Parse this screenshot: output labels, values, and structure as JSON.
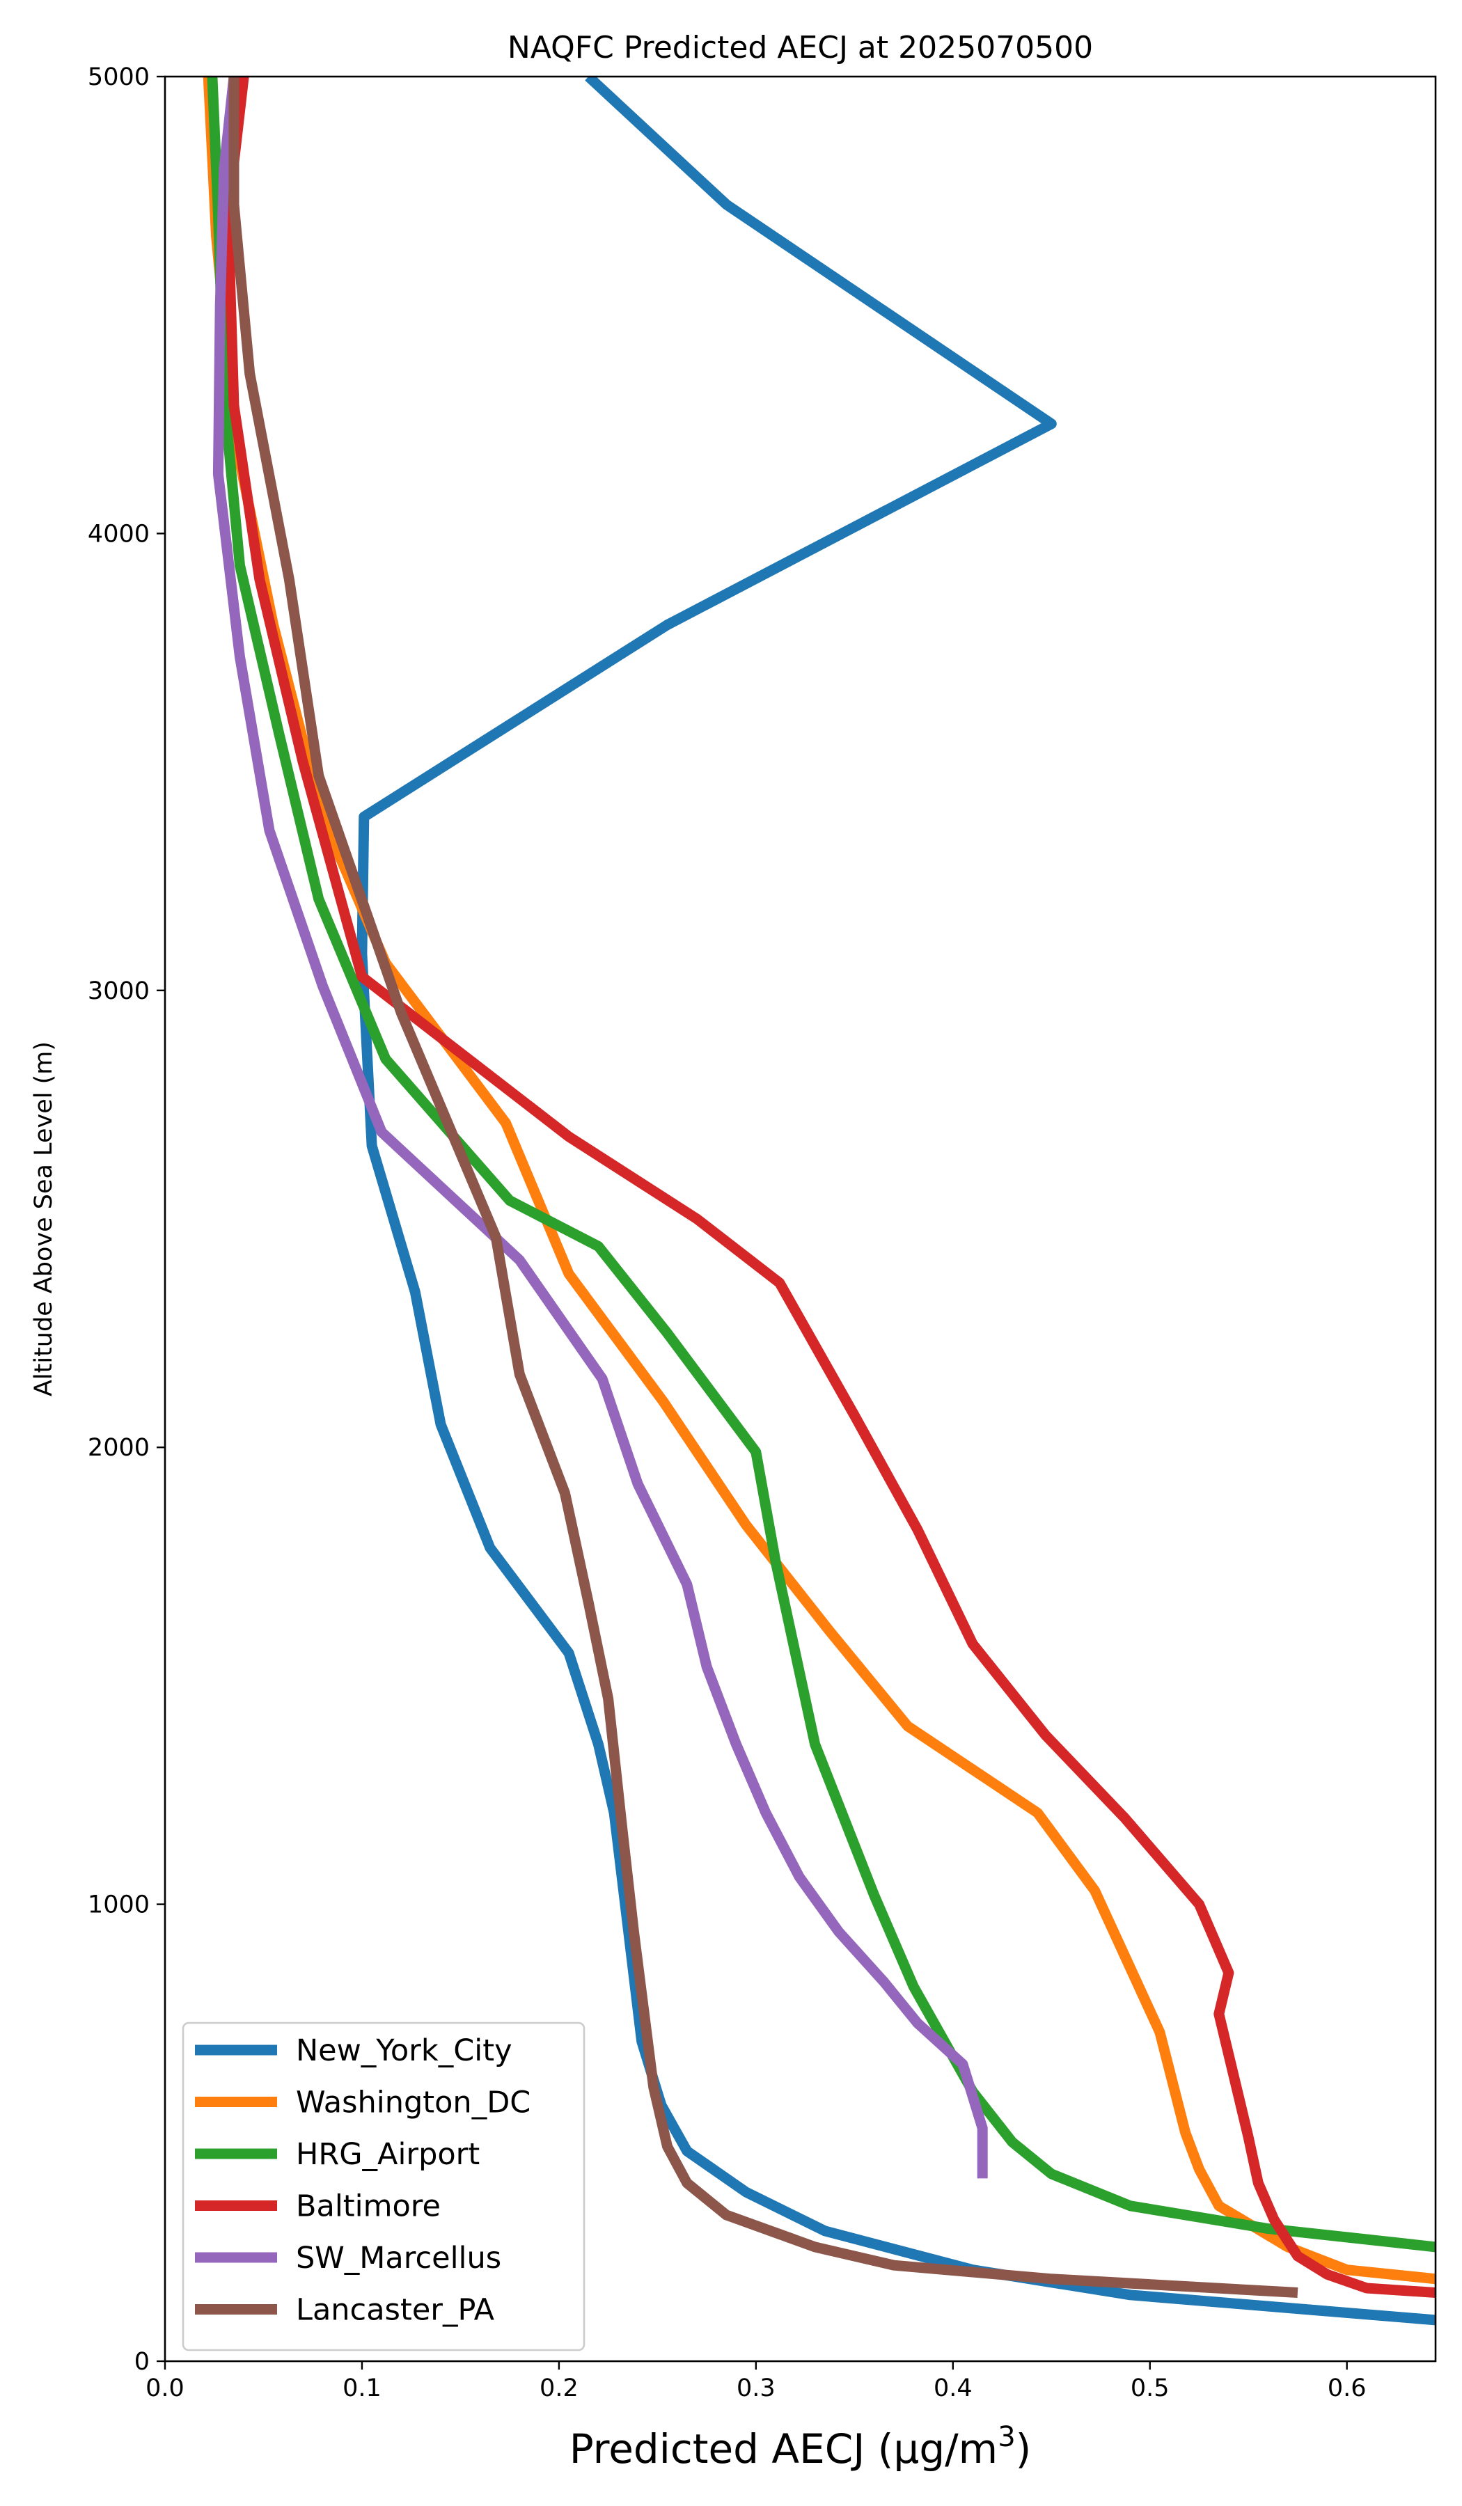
{
  "chart_data": {
    "type": "line",
    "title": "NAQFC Predicted AECJ at 2025070500",
    "xlabel": "Predicted AECJ (μg/m³)",
    "ylabel": "Altitude Above Sea Level (m)",
    "xlim": [
      0.0,
      0.645
    ],
    "ylim": [
      0,
      5000
    ],
    "xticks": [
      0.0,
      0.1,
      0.2,
      0.3,
      0.4,
      0.5,
      0.6
    ],
    "xtick_labels": [
      "0.0",
      "0.1",
      "0.2",
      "0.3",
      "0.4",
      "0.5",
      "0.6"
    ],
    "yticks": [
      0,
      1000,
      2000,
      3000,
      4000,
      5000
    ],
    "ytick_labels": [
      "0",
      "1000",
      "2000",
      "3000",
      "4000",
      "5000"
    ],
    "grid": false,
    "legend_position": "lower-left",
    "series": [
      {
        "name": "New_York_City",
        "color": "#1f77b4",
        "points": [
          [
            0.645,
            90
          ],
          [
            0.49,
            145
          ],
          [
            0.41,
            200
          ],
          [
            0.335,
            285
          ],
          [
            0.295,
            370
          ],
          [
            0.265,
            460
          ],
          [
            0.252,
            560
          ],
          [
            0.242,
            700
          ],
          [
            0.235,
            950
          ],
          [
            0.228,
            1200
          ],
          [
            0.22,
            1350
          ],
          [
            0.205,
            1550
          ],
          [
            0.165,
            1780
          ],
          [
            0.14,
            2050
          ],
          [
            0.127,
            2340
          ],
          [
            0.105,
            2660
          ],
          [
            0.1,
            3080
          ],
          [
            0.101,
            3380
          ],
          [
            0.255,
            3800
          ],
          [
            0.45,
            4240
          ],
          [
            0.285,
            4720
          ],
          [
            0.215,
            5000
          ]
        ]
      },
      {
        "name": "Washington_DC",
        "color": "#ff7f0e",
        "points": [
          [
            0.645,
            180
          ],
          [
            0.6,
            200
          ],
          [
            0.57,
            250
          ],
          [
            0.535,
            340
          ],
          [
            0.525,
            420
          ],
          [
            0.518,
            500
          ],
          [
            0.505,
            720
          ],
          [
            0.472,
            1030
          ],
          [
            0.443,
            1200
          ],
          [
            0.377,
            1390
          ],
          [
            0.337,
            1600
          ],
          [
            0.295,
            1830
          ],
          [
            0.253,
            2100
          ],
          [
            0.205,
            2380
          ],
          [
            0.173,
            2710
          ],
          [
            0.112,
            3060
          ],
          [
            0.08,
            3380
          ],
          [
            0.055,
            3800
          ],
          [
            0.036,
            4200
          ],
          [
            0.026,
            4650
          ],
          [
            0.022,
            5000
          ]
        ]
      },
      {
        "name": "HRG_Airport",
        "color": "#2ca02c",
        "points": [
          [
            0.645,
            250
          ],
          [
            0.56,
            290
          ],
          [
            0.49,
            340
          ],
          [
            0.45,
            410
          ],
          [
            0.43,
            480
          ],
          [
            0.41,
            590
          ],
          [
            0.38,
            820
          ],
          [
            0.36,
            1020
          ],
          [
            0.33,
            1350
          ],
          [
            0.31,
            1750
          ],
          [
            0.3,
            1990
          ],
          [
            0.255,
            2250
          ],
          [
            0.22,
            2440
          ],
          [
            0.175,
            2540
          ],
          [
            0.112,
            2850
          ],
          [
            0.078,
            3200
          ],
          [
            0.058,
            3560
          ],
          [
            0.038,
            3930
          ],
          [
            0.03,
            4300
          ],
          [
            0.027,
            4700
          ],
          [
            0.024,
            5000
          ]
        ]
      },
      {
        "name": "Baltimore",
        "color": "#d62728",
        "points": [
          [
            0.645,
            150
          ],
          [
            0.61,
            160
          ],
          [
            0.59,
            190
          ],
          [
            0.575,
            230
          ],
          [
            0.563,
            310
          ],
          [
            0.555,
            390
          ],
          [
            0.55,
            490
          ],
          [
            0.545,
            580
          ],
          [
            0.535,
            760
          ],
          [
            0.54,
            850
          ],
          [
            0.525,
            1000
          ],
          [
            0.487,
            1190
          ],
          [
            0.447,
            1370
          ],
          [
            0.41,
            1570
          ],
          [
            0.382,
            1820
          ],
          [
            0.35,
            2070
          ],
          [
            0.312,
            2360
          ],
          [
            0.27,
            2500
          ],
          [
            0.205,
            2680
          ],
          [
            0.1,
            3030
          ],
          [
            0.07,
            3500
          ],
          [
            0.048,
            3900
          ],
          [
            0.035,
            4280
          ],
          [
            0.032,
            4700
          ],
          [
            0.04,
            5000
          ]
        ]
      },
      {
        "name": "SW_Marcellus",
        "color": "#9467bd",
        "points": [
          [
            0.415,
            400
          ],
          [
            0.415,
            510
          ],
          [
            0.41,
            580
          ],
          [
            0.405,
            650
          ],
          [
            0.382,
            740
          ],
          [
            0.365,
            830
          ],
          [
            0.342,
            940
          ],
          [
            0.322,
            1060
          ],
          [
            0.305,
            1200
          ],
          [
            0.29,
            1350
          ],
          [
            0.275,
            1520
          ],
          [
            0.265,
            1700
          ],
          [
            0.24,
            1920
          ],
          [
            0.222,
            2150
          ],
          [
            0.18,
            2410
          ],
          [
            0.11,
            2690
          ],
          [
            0.08,
            3010
          ],
          [
            0.053,
            3350
          ],
          [
            0.038,
            3730
          ],
          [
            0.027,
            4130
          ],
          [
            0.028,
            4500
          ],
          [
            0.03,
            4800
          ],
          [
            0.035,
            5000
          ]
        ]
      },
      {
        "name": "Lancaster_PA",
        "color": "#8c564b",
        "points": [
          [
            0.575,
            150
          ],
          [
            0.45,
            180
          ],
          [
            0.37,
            210
          ],
          [
            0.33,
            250
          ],
          [
            0.285,
            320
          ],
          [
            0.265,
            390
          ],
          [
            0.255,
            470
          ],
          [
            0.248,
            600
          ],
          [
            0.238,
            940
          ],
          [
            0.232,
            1170
          ],
          [
            0.225,
            1450
          ],
          [
            0.215,
            1660
          ],
          [
            0.203,
            1900
          ],
          [
            0.18,
            2160
          ],
          [
            0.168,
            2460
          ],
          [
            0.12,
            2950
          ],
          [
            0.078,
            3470
          ],
          [
            0.063,
            3900
          ],
          [
            0.043,
            4350
          ],
          [
            0.035,
            4720
          ],
          [
            0.035,
            5000
          ]
        ]
      }
    ]
  }
}
